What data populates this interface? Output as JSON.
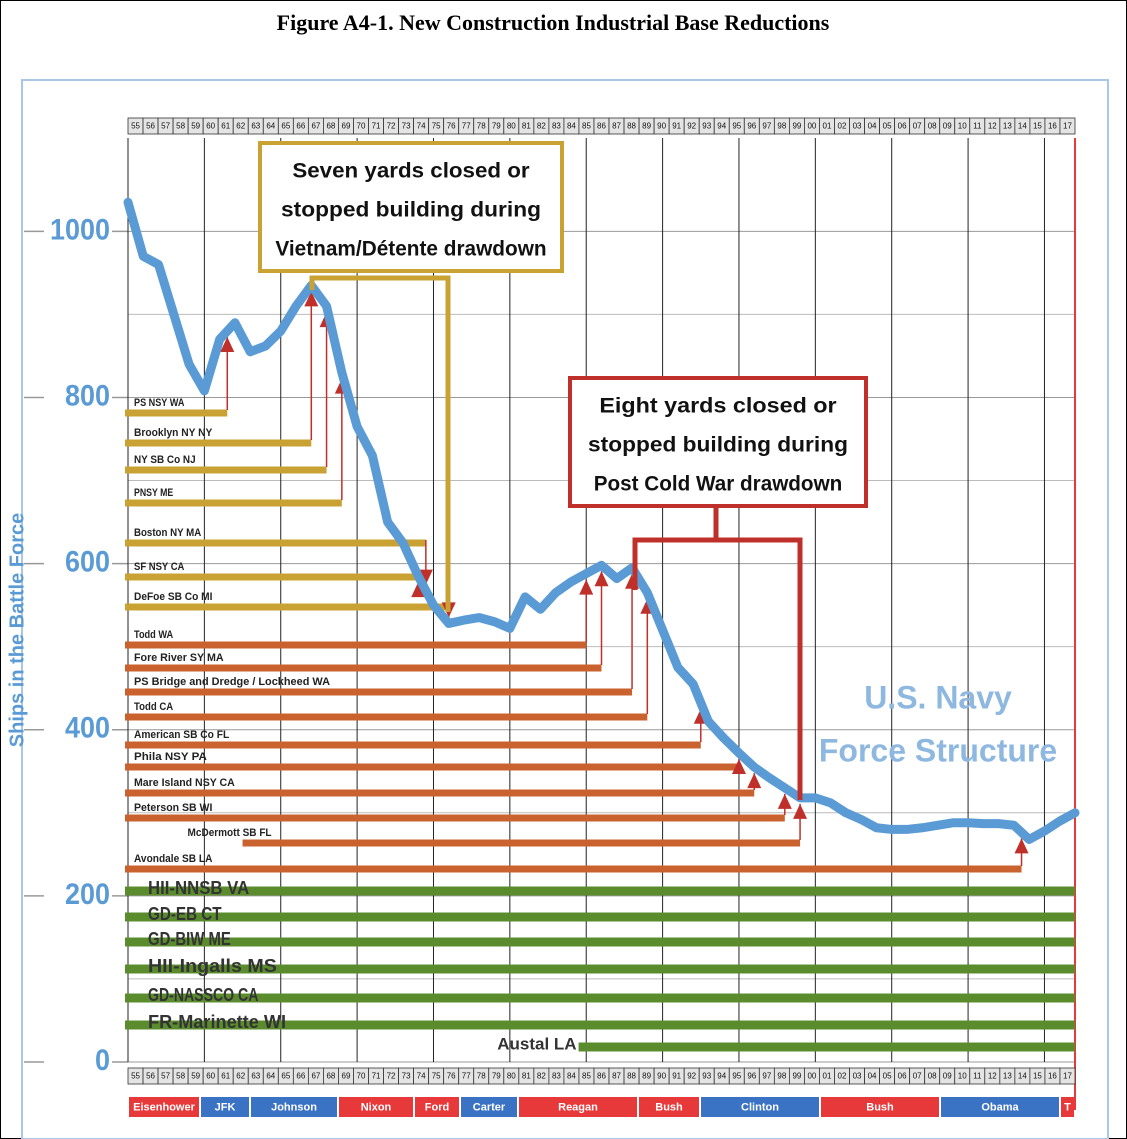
{
  "title": "Figure A4-1.  New Construction Industrial Base Reductions",
  "chart_data": {
    "type": "line",
    "y_label": "Ships in the Battle Force",
    "xlim": [
      1955,
      2017
    ],
    "ylim": [
      0,
      1110
    ],
    "yticks": [
      0,
      200,
      400,
      600,
      800,
      1000
    ],
    "ygrid_minor": [
      100,
      300,
      500,
      700,
      900
    ],
    "xgrid": [
      1955,
      1960,
      1965,
      1970,
      1975,
      1980,
      1985,
      1990,
      1995,
      2000,
      2005,
      2010,
      2015
    ],
    "year_labels": [
      "55",
      "56",
      "57",
      "58",
      "59",
      "60",
      "61",
      "62",
      "63",
      "64",
      "65",
      "66",
      "67",
      "68",
      "69",
      "70",
      "71",
      "72",
      "73",
      "74",
      "75",
      "76",
      "77",
      "78",
      "79",
      "80",
      "81",
      "82",
      "83",
      "84",
      "85",
      "86",
      "87",
      "88",
      "89",
      "90",
      "91",
      "92",
      "93",
      "94",
      "95",
      "96",
      "97",
      "98",
      "99",
      "00",
      "01",
      "02",
      "03",
      "04",
      "05",
      "06",
      "07",
      "08",
      "09",
      "10",
      "11",
      "12",
      "13",
      "14",
      "15",
      "16",
      "17"
    ],
    "x": [
      1955,
      1956,
      1957,
      1958,
      1959,
      1960,
      1961,
      1962,
      1963,
      1964,
      1965,
      1966,
      1967,
      1968,
      1969,
      1970,
      1971,
      1972,
      1973,
      1974,
      1975,
      1976,
      1977,
      1978,
      1979,
      1980,
      1981,
      1982,
      1983,
      1984,
      1985,
      1986,
      1987,
      1988,
      1989,
      1990,
      1991,
      1992,
      1993,
      1994,
      1995,
      1996,
      1997,
      1998,
      1999,
      2000,
      2001,
      2002,
      2003,
      2004,
      2005,
      2006,
      2007,
      2008,
      2009,
      2010,
      2011,
      2012,
      2013,
      2014,
      2015,
      2016,
      2017
    ],
    "series": [
      {
        "label_lines": [
          "U.S. Navy",
          "Force Structure"
        ],
        "color": "#5b9bd5",
        "values": [
          1035,
          970,
          960,
          900,
          840,
          808,
          870,
          890,
          855,
          862,
          880,
          910,
          935,
          910,
          830,
          765,
          730,
          650,
          625,
          585,
          550,
          528,
          532,
          535,
          530,
          522,
          560,
          545,
          565,
          578,
          588,
          598,
          582,
          595,
          565,
          520,
          475,
          455,
          410,
          390,
          372,
          355,
          342,
          330,
          318,
          318,
          312,
          300,
          292,
          282,
          280,
          280,
          282,
          285,
          288,
          288,
          287,
          287,
          285,
          268,
          278,
          290,
          300
        ]
      }
    ],
    "arrow_color": "#c0302a",
    "yards": [
      {
        "name": "PS NSY WA",
        "end": 1961.5,
        "color": "#c9a233"
      },
      {
        "name": "Brooklyn NY NY",
        "end": 1967,
        "color": "#c9a233"
      },
      {
        "name": "NY SB Co NJ",
        "end": 1968,
        "color": "#c9a233"
      },
      {
        "name": "PNSY ME",
        "end": 1969,
        "color": "#c9a233"
      },
      {
        "name": "Boston NY MA",
        "end": 1974.5,
        "color": "#c9a233"
      },
      {
        "name": "SF NSY CA",
        "end": 1974,
        "color": "#c9a233"
      },
      {
        "name": "DeFoe SB Co MI",
        "end": 1976,
        "color": "#c9a233"
      },
      {
        "name": "Todd WA",
        "end": 1985,
        "color": "#c9622e"
      },
      {
        "name": "Fore River SY MA",
        "end": 1986,
        "color": "#c9622e"
      },
      {
        "name": "PS Bridge and Dredge / Lockheed  WA",
        "end": 1988,
        "color": "#c9622e"
      },
      {
        "name": "Todd CA",
        "end": 1989,
        "color": "#c9622e"
      },
      {
        "name": "American SB Co FL",
        "end": 1992.5,
        "color": "#c9622e"
      },
      {
        "name": "Phila  NSY PA",
        "end": 1995,
        "color": "#c9622e"
      },
      {
        "name": "Mare Island NSY CA",
        "end": 1996,
        "color": "#c9622e"
      },
      {
        "name": "Peterson SB WI",
        "end": 1998,
        "color": "#c9622e"
      },
      {
        "name": "McDermott SB FL",
        "start": 1962.5,
        "end": 1999,
        "color": "#c9622e"
      },
      {
        "name": "Avondale SB LA",
        "end": 2013.5,
        "color": "#c9622e"
      },
      {
        "name": "HII-NNSB VA",
        "color": "#5a8c2e"
      },
      {
        "name": "GD-EB CT",
        "color": "#5a8c2e"
      },
      {
        "name": "GD-BIW ME",
        "color": "#5a8c2e"
      },
      {
        "name": "HII-Ingalls MS",
        "color": "#5a8c2e"
      },
      {
        "name": "GD-NASSCO CA",
        "color": "#5a8c2e"
      },
      {
        "name": "FR-Marinette WI",
        "color": "#5a8c2e"
      },
      {
        "name": "Austal LA",
        "start": 1984.5,
        "color": "#5a8c2e"
      }
    ],
    "annotations": [
      {
        "lines": [
          "Seven yards closed or",
          "stopped building during",
          "Vietnam/Détente drawdown"
        ],
        "color": "#c9a233"
      },
      {
        "lines": [
          "Eight yards closed or",
          "stopped building during",
          "Post Cold War drawdown"
        ],
        "color": "#c0302a"
      }
    ],
    "presidents": [
      {
        "name": "Eisenhower",
        "color": "#e8393a"
      },
      {
        "name": "JFK",
        "color": "#3b73c4"
      },
      {
        "name": "Johnson",
        "color": "#3b73c4"
      },
      {
        "name": "Nixon",
        "color": "#e8393a"
      },
      {
        "name": "Ford",
        "color": "#e8393a"
      },
      {
        "name": "Carter",
        "color": "#3b73c4"
      },
      {
        "name": "Reagan",
        "color": "#e8393a"
      },
      {
        "name": "Bush",
        "color": "#e8393a"
      },
      {
        "name": "Clinton",
        "color": "#3b73c4"
      },
      {
        "name": "Bush",
        "color": "#e8393a"
      },
      {
        "name": "Obama",
        "color": "#3b73c4"
      },
      {
        "name": "T",
        "color": "#e8393a"
      }
    ]
  }
}
